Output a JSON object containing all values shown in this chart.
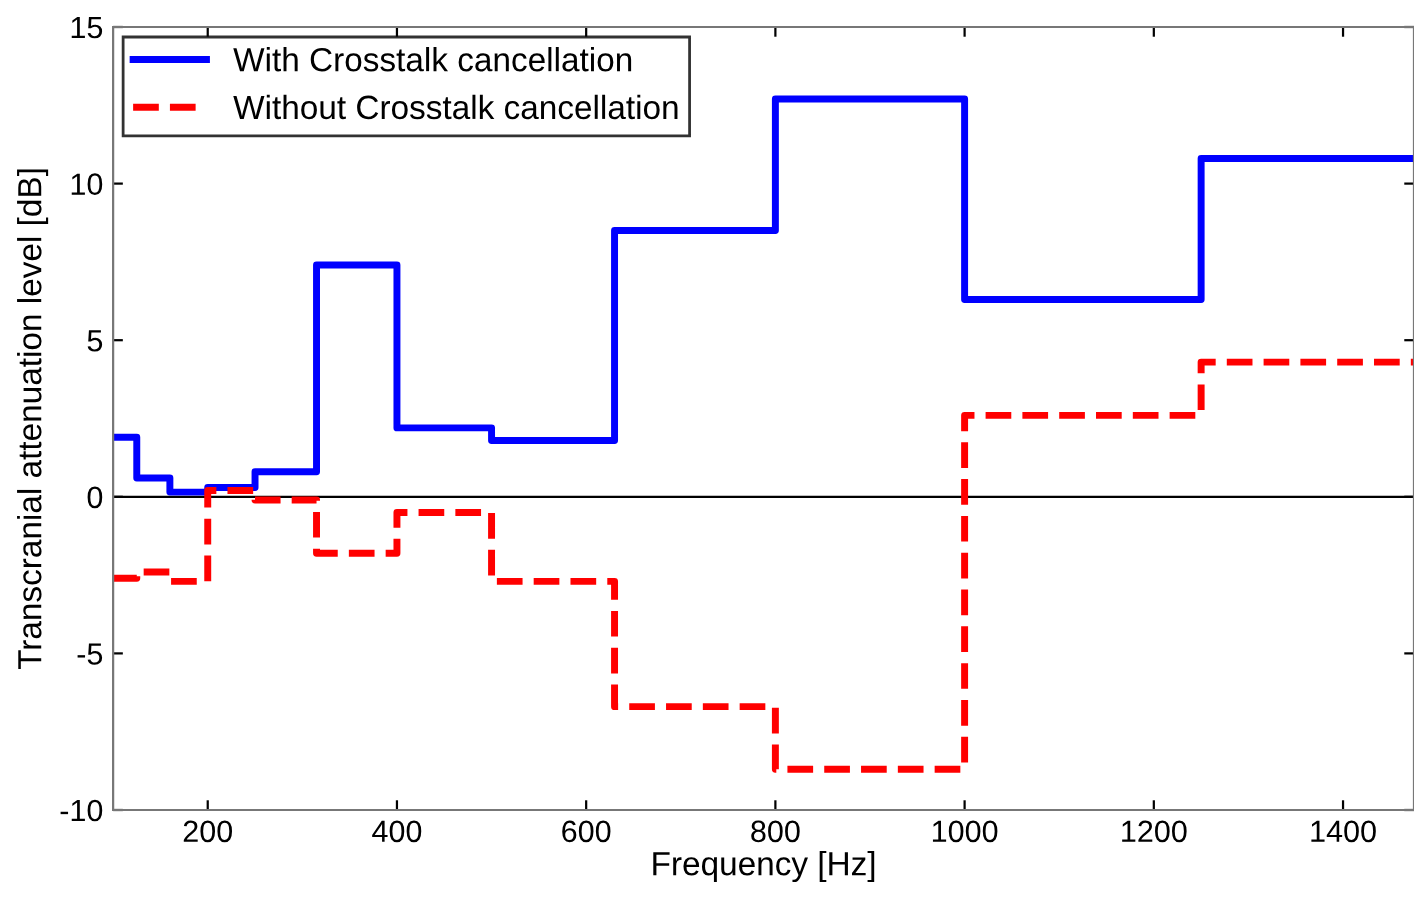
{
  "chart_data": {
    "type": "step",
    "xlabel": "Frequency [Hz]",
    "ylabel": "Transcranial attenuation level [dB]",
    "x": [
      100,
      125,
      160,
      200,
      250,
      315,
      400,
      500,
      630,
      800,
      1000,
      1250,
      1475
    ],
    "series": [
      {
        "name": "With Crosstalk cancellation",
        "color": "#0000ff",
        "line_style": "solid",
        "values": [
          1.9,
          0.6,
          0.15,
          0.3,
          0.8,
          7.4,
          2.2,
          1.8,
          8.5,
          12.7,
          6.3,
          10.8,
          10.8
        ]
      },
      {
        "name": "Without Crosstalk cancellation",
        "color": "#ff0000",
        "line_style": "dashed",
        "values": [
          -2.6,
          -2.4,
          -2.7,
          0.2,
          -0.1,
          -1.8,
          -0.5,
          -2.7,
          -6.7,
          -8.7,
          2.6,
          4.3,
          4.3
        ]
      }
    ],
    "xlim": [
      100,
      1475
    ],
    "ylim": [
      -10,
      15
    ],
    "xticks": [
      200,
      400,
      600,
      800,
      1000,
      1200,
      1400
    ],
    "yticks": [
      -10,
      -5,
      0,
      5,
      10,
      15
    ],
    "ref_lines": [
      {
        "axis": "y",
        "value": 0,
        "color": "#000000"
      }
    ],
    "grid": false,
    "legend": "top left"
  }
}
